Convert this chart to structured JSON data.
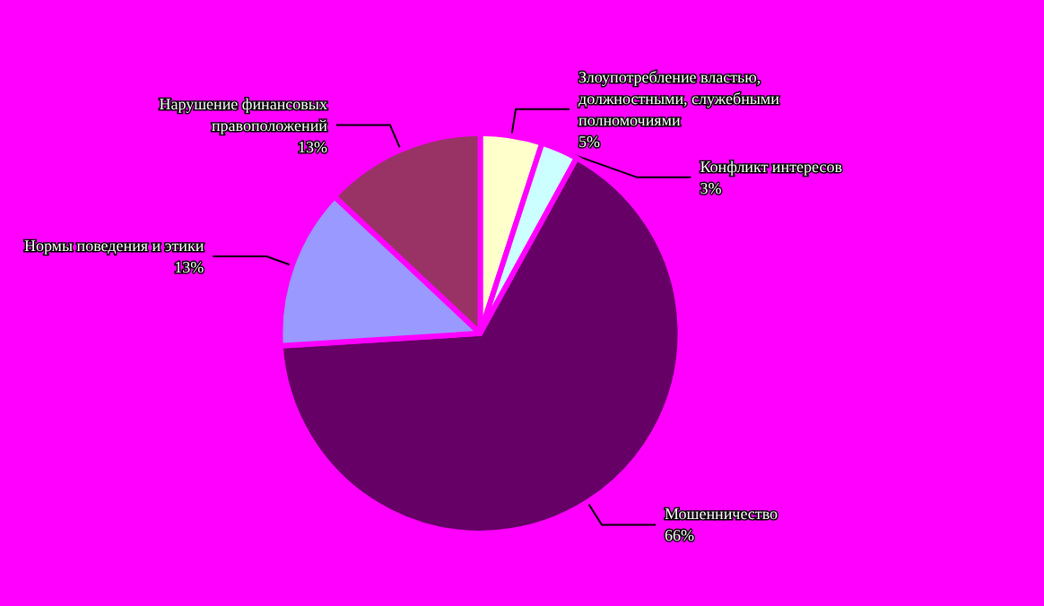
{
  "chart_data": {
    "type": "pie",
    "categories": [
      "Злоупотребление властью, должностными, служебными полномочиями",
      "Конфликт интересов",
      "Мошенничество",
      "Нормы поведения и этики",
      "Нарушение финансовых правоположений"
    ],
    "values": [
      5,
      3,
      66,
      13,
      13
    ],
    "value_labels": [
      "5%",
      "3%",
      "66%",
      "13%",
      "13%"
    ],
    "colors": [
      "#ffffcc",
      "#ccffff",
      "#660066",
      "#9999ff",
      "#993366"
    ],
    "legend": false
  }
}
